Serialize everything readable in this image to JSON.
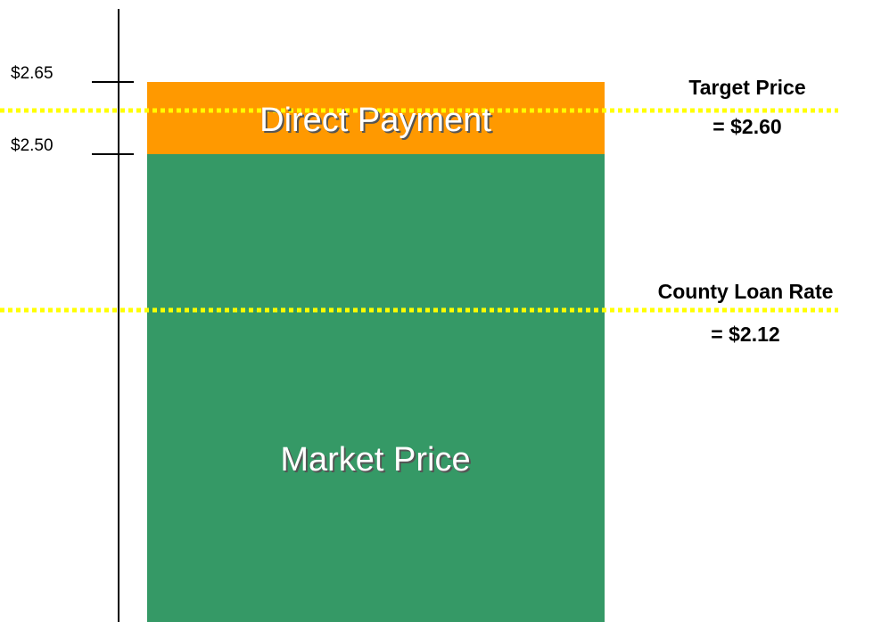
{
  "axis": {
    "ticks": [
      "$2.65",
      "$2.50"
    ]
  },
  "blocks": [
    "Direct Payment",
    "Market Price"
  ],
  "reference_lines": [
    {
      "label": "Target Price",
      "value_label": "= $2.60"
    },
    {
      "label": "County Loan Rate",
      "value_label": "= $2.12"
    }
  ]
}
